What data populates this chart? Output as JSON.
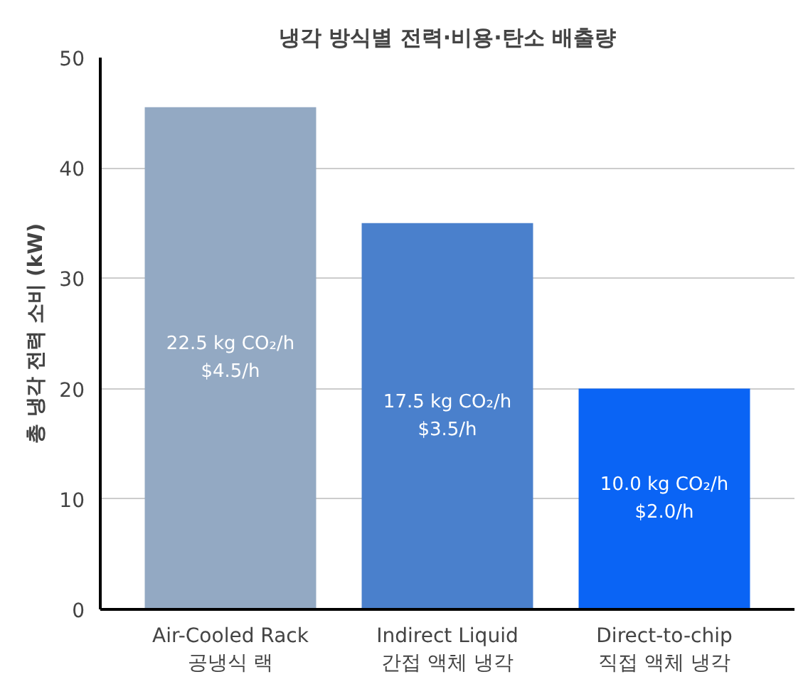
{
  "chart_data": {
    "type": "bar",
    "title": "냉각 방식별 전력·비용·탄소 배출량",
    "ylabel": "총 냉각 전력 소비 (kW)",
    "categories": [
      "Air-Cooled Rack\n공냉식 랙",
      "Indirect Liquid\n간접 액체 냉각",
      "Direct-to-chip\n직접 액체 냉각"
    ],
    "values": [
      45.5,
      35,
      20
    ],
    "colors": [
      "#93a9c3",
      "#4a80cc",
      "#0a64f5"
    ],
    "ylim": [
      0,
      50
    ],
    "yticks": [
      0,
      10,
      20,
      30,
      40,
      50
    ],
    "grid": "y",
    "annotations": [
      "22.5 kg CO₂/h\n$4.5/h",
      "17.5 kg CO₂/h\n$3.5/h",
      "10.0 kg CO₂/h\n$2.0/h"
    ]
  }
}
